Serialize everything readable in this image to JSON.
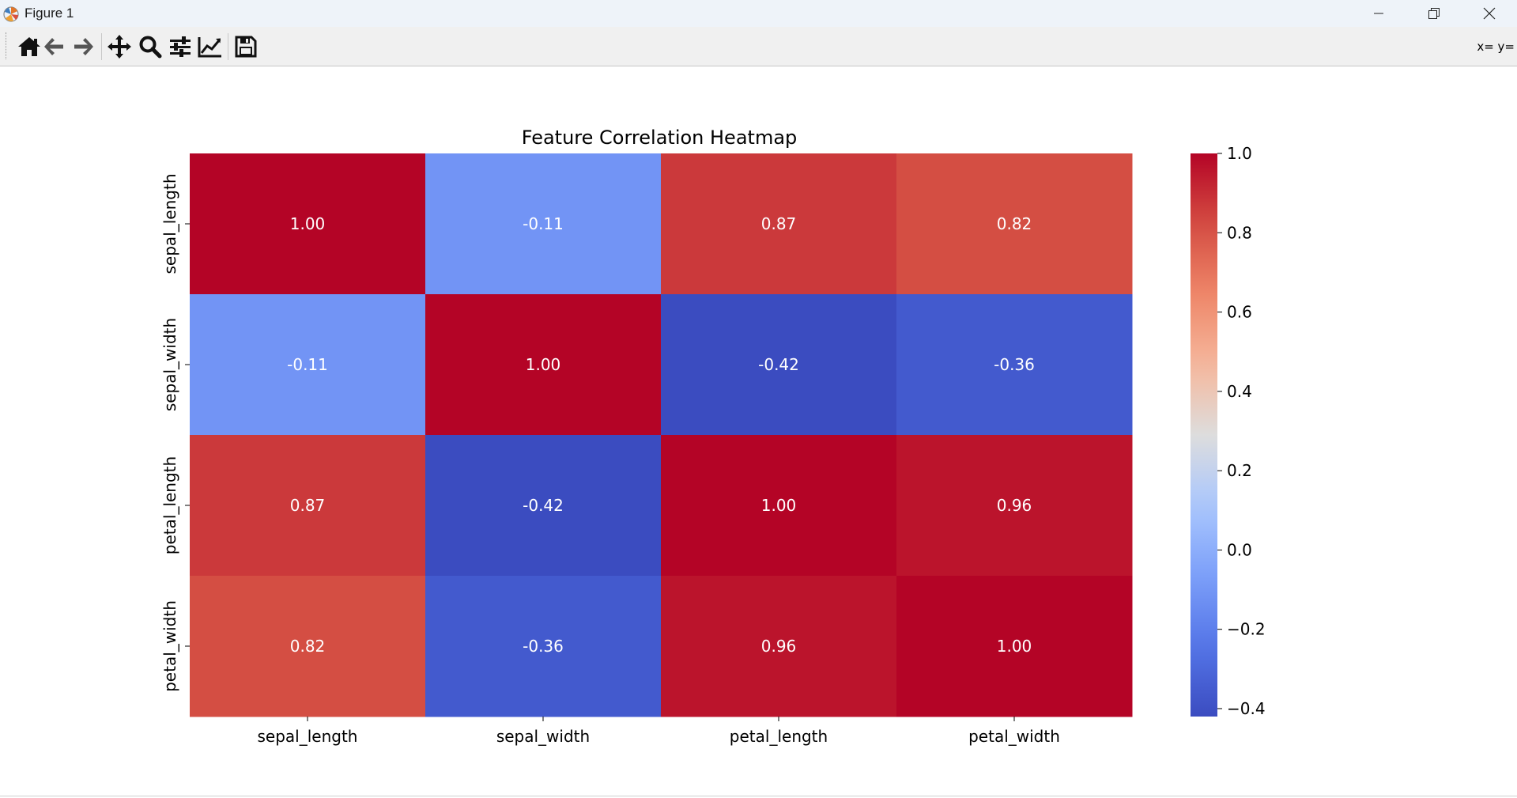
{
  "window": {
    "title": "Figure 1",
    "controls": [
      "minimize",
      "maximize",
      "close"
    ]
  },
  "toolbar": {
    "buttons": [
      {
        "name": "home",
        "icon": "home-icon"
      },
      {
        "name": "back",
        "icon": "arrow-left-icon"
      },
      {
        "name": "forward",
        "icon": "arrow-right-icon"
      },
      {
        "name": "pan",
        "icon": "move-icon"
      },
      {
        "name": "zoom",
        "icon": "magnifier-icon"
      },
      {
        "name": "configure-subplots",
        "icon": "sliders-icon"
      },
      {
        "name": "edit-axes",
        "icon": "line-chart-icon"
      },
      {
        "name": "save",
        "icon": "floppy-disk-icon"
      }
    ],
    "coords": "x= y="
  },
  "chart_data": {
    "type": "heatmap",
    "title": "Feature Correlation Heatmap",
    "x_labels": [
      "sepal_length",
      "sepal_width",
      "petal_length",
      "petal_width"
    ],
    "y_labels": [
      "sepal_length",
      "sepal_width",
      "petal_length",
      "petal_width"
    ],
    "values": [
      [
        1.0,
        -0.11,
        0.87,
        0.82
      ],
      [
        -0.11,
        1.0,
        -0.42,
        -0.36
      ],
      [
        0.87,
        -0.42,
        1.0,
        0.96
      ],
      [
        0.82,
        -0.36,
        0.96,
        1.0
      ]
    ],
    "annotations": [
      [
        "1.00",
        "-0.11",
        "0.87",
        "0.82"
      ],
      [
        "-0.11",
        "1.00",
        "-0.42",
        "-0.36"
      ],
      [
        "0.87",
        "-0.42",
        "1.00",
        "0.96"
      ],
      [
        "0.82",
        "-0.36",
        "0.96",
        "1.00"
      ]
    ],
    "colormap": "coolwarm",
    "vmin": -0.42,
    "vmax": 1.0,
    "colorbar_ticks": [
      "1.0",
      "0.8",
      "0.6",
      "0.4",
      "0.2",
      "0.0",
      "−0.2",
      "−0.4"
    ],
    "colorbar_tick_values": [
      1.0,
      0.8,
      0.6,
      0.4,
      0.2,
      0.0,
      -0.2,
      -0.4
    ],
    "annotation_color": "#ffffff",
    "legend": "colorbar-right"
  }
}
